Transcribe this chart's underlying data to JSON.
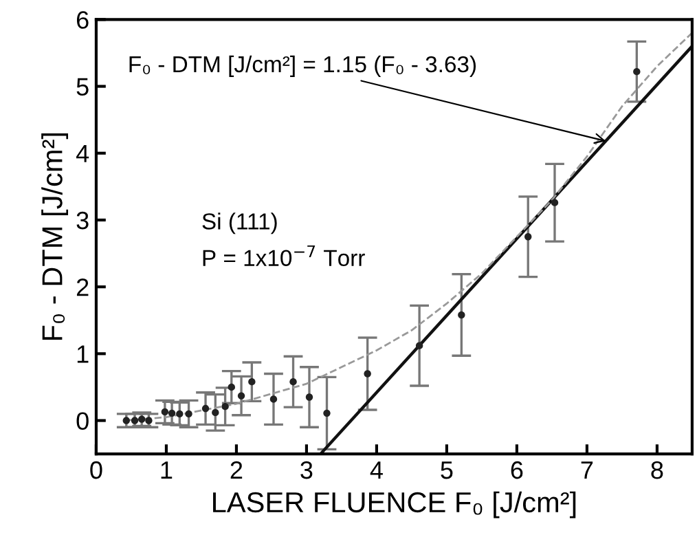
{
  "chart_data": {
    "type": "scatter",
    "xlabel": "LASER FLUENCE F₀ [J/cm²]",
    "ylabel": "F₀ - DTM [J/cm²]",
    "xlim": [
      0,
      8.5
    ],
    "ylim": [
      -0.5,
      6
    ],
    "xticks": [
      0,
      1,
      2,
      3,
      4,
      5,
      6,
      7,
      8
    ],
    "yticks": [
      0,
      1,
      2,
      3,
      4,
      5,
      6
    ],
    "grid": false,
    "legend": false,
    "series": [
      {
        "color": "#222222",
        "marker": "circle",
        "x": [
          0.43,
          0.55,
          0.65,
          0.75,
          0.98,
          1.08,
          1.19,
          1.32,
          1.56,
          1.7,
          1.84,
          1.93,
          2.07,
          2.22,
          2.53,
          2.81,
          3.04,
          3.29,
          3.87,
          4.61,
          5.21,
          6.16,
          6.54,
          7.71
        ],
        "values": [
          0.0,
          0.0,
          0.02,
          0.0,
          0.13,
          0.11,
          0.1,
          0.1,
          0.18,
          0.12,
          0.21,
          0.5,
          0.37,
          0.58,
          0.32,
          0.58,
          0.35,
          0.11,
          0.7,
          1.12,
          1.58,
          2.75,
          3.26,
          5.22
        ],
        "errors": [
          0.1,
          0.1,
          0.1,
          0.1,
          0.17,
          0.17,
          0.17,
          0.2,
          0.24,
          0.27,
          0.28,
          0.24,
          0.29,
          0.29,
          0.38,
          0.38,
          0.45,
          0.54,
          0.54,
          0.6,
          0.61,
          0.6,
          0.58,
          0.45
        ]
      },
      {
        "type": "line",
        "color": "#111111",
        "line_style": "solid",
        "x": [
          3.2,
          8.5
        ],
        "values": [
          -0.5,
          5.6
        ]
      },
      {
        "type": "line",
        "color": "#999999",
        "line_style": "dashed",
        "x": [
          0.4,
          1,
          2,
          3,
          3.5,
          4,
          4.5,
          5,
          5.5,
          6,
          6.5,
          7,
          7.5,
          8,
          8.5
        ],
        "values": [
          0.0,
          0.05,
          0.25,
          0.55,
          0.8,
          1.05,
          1.35,
          1.75,
          2.2,
          2.75,
          3.3,
          3.95,
          4.7,
          5.3,
          5.8
        ]
      }
    ],
    "annotations": [
      {
        "text": "F₀ - DTM [J/cm²] = 1.15 (F₀ - 3.63)",
        "x": 7.27,
        "y": 4.18
      },
      "Si (111)",
      "P = 1x10$^{−7}$ Torr"
    ]
  }
}
